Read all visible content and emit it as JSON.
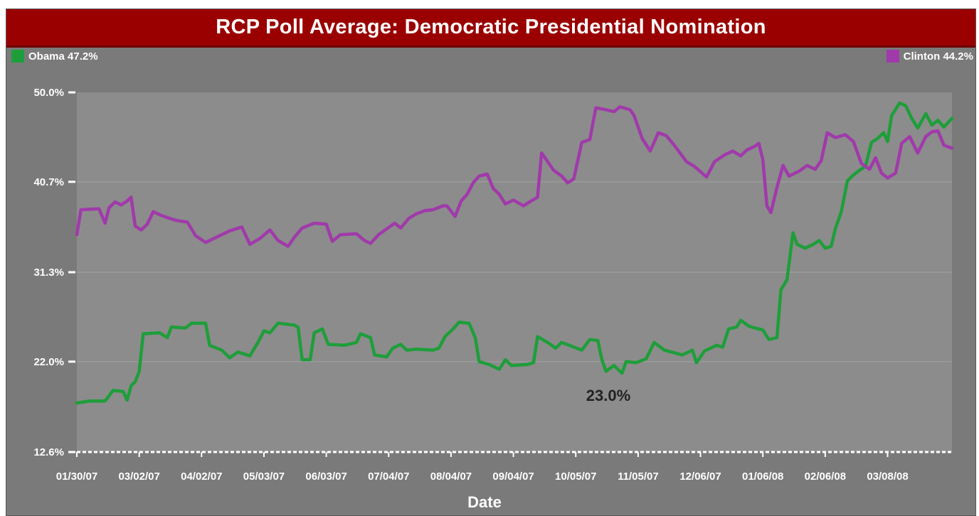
{
  "chart_data": {
    "type": "line",
    "title": "RCP Poll Average: Democratic Presidential Nomination",
    "xlabel": "Date",
    "ylabel": "",
    "ylim": [
      12.6,
      50.0
    ],
    "yticks": [
      "50.0%",
      "40.7%",
      "31.3%",
      "22.0%",
      "12.6%"
    ],
    "ytick_values": [
      50.0,
      40.7,
      31.3,
      22.0,
      12.6
    ],
    "xtick_labels": [
      "01/30/07",
      "03/02/07",
      "04/02/07",
      "05/03/07",
      "06/03/07",
      "07/04/07",
      "08/04/07",
      "09/04/07",
      "10/05/07",
      "11/05/07",
      "12/06/07",
      "01/06/08",
      "02/06/08",
      "03/08/08"
    ],
    "grid": true,
    "legend": [
      {
        "name": "Obama",
        "label": "Obama 47.2%",
        "placement": "top-left"
      },
      {
        "name": "Clinton",
        "label": "Clinton 44.2%",
        "placement": "top-right"
      }
    ],
    "annotations": [
      {
        "text": "23.0%"
      }
    ],
    "series": [
      {
        "name": "Obama",
        "color": "#1e9e3a",
        "points": [
          [
            "01/30/07",
            17.7
          ],
          [
            "02/05/07",
            17.9
          ],
          [
            "02/13/07",
            17.9
          ],
          [
            "02/17/07",
            19.0
          ],
          [
            "02/22/07",
            18.9
          ],
          [
            "02/24/07",
            18.0
          ],
          [
            "02/26/07",
            19.5
          ],
          [
            "02/28/07",
            19.9
          ],
          [
            "03/02/07",
            21.0
          ],
          [
            "03/04/07",
            24.9
          ],
          [
            "03/12/07",
            25.0
          ],
          [
            "03/16/07",
            24.5
          ],
          [
            "03/18/07",
            25.6
          ],
          [
            "03/25/07",
            25.5
          ],
          [
            "03/28/07",
            26.0
          ],
          [
            "04/04/07",
            26.0
          ],
          [
            "04/06/07",
            23.7
          ],
          [
            "04/12/07",
            23.2
          ],
          [
            "04/16/07",
            22.4
          ],
          [
            "04/20/07",
            23.0
          ],
          [
            "04/26/07",
            22.6
          ],
          [
            "04/30/07",
            24.0
          ],
          [
            "05/03/07",
            25.2
          ],
          [
            "05/06/07",
            25.0
          ],
          [
            "05/10/07",
            26.0
          ],
          [
            "05/18/07",
            25.8
          ],
          [
            "05/20/07",
            25.6
          ],
          [
            "05/22/07",
            22.2
          ],
          [
            "05/26/07",
            22.2
          ],
          [
            "05/28/07",
            25.0
          ],
          [
            "06/01/07",
            25.4
          ],
          [
            "06/04/07",
            23.8
          ],
          [
            "06/12/07",
            23.7
          ],
          [
            "06/18/07",
            24.0
          ],
          [
            "06/20/07",
            24.9
          ],
          [
            "06/25/07",
            24.5
          ],
          [
            "06/27/07",
            22.7
          ],
          [
            "07/03/07",
            22.5
          ],
          [
            "07/06/07",
            23.4
          ],
          [
            "07/10/07",
            23.8
          ],
          [
            "07/13/07",
            23.2
          ],
          [
            "07/18/07",
            23.3
          ],
          [
            "07/26/07",
            23.2
          ],
          [
            "07/29/07",
            23.4
          ],
          [
            "08/01/07",
            24.6
          ],
          [
            "08/05/07",
            25.4
          ],
          [
            "08/08/07",
            26.1
          ],
          [
            "08/13/07",
            26.0
          ],
          [
            "08/16/07",
            24.5
          ],
          [
            "08/18/07",
            22.0
          ],
          [
            "08/23/07",
            21.7
          ],
          [
            "08/28/07",
            21.2
          ],
          [
            "08/31/07",
            22.2
          ],
          [
            "09/03/07",
            21.6
          ],
          [
            "09/11/07",
            21.7
          ],
          [
            "09/14/07",
            21.9
          ],
          [
            "09/16/07",
            24.6
          ],
          [
            "09/21/07",
            24.0
          ],
          [
            "09/25/07",
            23.4
          ],
          [
            "09/28/07",
            24.0
          ],
          [
            "10/03/07",
            23.6
          ],
          [
            "10/08/07",
            23.2
          ],
          [
            "10/12/07",
            24.3
          ],
          [
            "10/16/07",
            24.2
          ],
          [
            "10/18/07",
            22.2
          ],
          [
            "10/20/07",
            21.0
          ],
          [
            "10/24/07",
            21.6
          ],
          [
            "10/28/07",
            20.8
          ],
          [
            "10/30/07",
            22.0
          ],
          [
            "11/04/07",
            21.9
          ],
          [
            "11/09/07",
            22.3
          ],
          [
            "11/13/07",
            24.0
          ],
          [
            "11/18/07",
            23.2
          ],
          [
            "11/27/07",
            22.7
          ],
          [
            "12/02/07",
            23.2
          ],
          [
            "12/04/07",
            21.9
          ],
          [
            "12/08/07",
            23.1
          ],
          [
            "12/14/07",
            23.7
          ],
          [
            "12/17/07",
            23.5
          ],
          [
            "12/20/07",
            25.4
          ],
          [
            "12/24/07",
            25.6
          ],
          [
            "12/26/07",
            26.3
          ],
          [
            "12/30/07",
            25.7
          ],
          [
            "01/02/08",
            25.5
          ],
          [
            "01/06/08",
            25.3
          ],
          [
            "01/09/08",
            24.3
          ],
          [
            "01/13/08",
            24.5
          ],
          [
            "01/15/08",
            29.5
          ],
          [
            "01/18/08",
            30.5
          ],
          [
            "01/21/08",
            35.4
          ],
          [
            "01/23/08",
            34.2
          ],
          [
            "01/27/08",
            33.8
          ],
          [
            "01/31/08",
            34.2
          ],
          [
            "02/03/08",
            34.6
          ],
          [
            "02/06/08",
            33.8
          ],
          [
            "02/09/08",
            34.0
          ],
          [
            "02/11/08",
            35.8
          ],
          [
            "02/14/08",
            37.6
          ],
          [
            "02/17/08",
            40.8
          ],
          [
            "02/20/08",
            41.4
          ],
          [
            "02/23/08",
            41.9
          ],
          [
            "02/26/08",
            42.3
          ],
          [
            "02/29/08",
            44.8
          ],
          [
            "03/03/08",
            45.2
          ],
          [
            "03/06/08",
            45.8
          ],
          [
            "03/08/08",
            44.9
          ],
          [
            "03/10/08",
            47.6
          ],
          [
            "03/14/08",
            48.9
          ],
          [
            "03/17/08",
            48.6
          ],
          [
            "03/20/08",
            47.3
          ],
          [
            "03/23/08",
            46.3
          ],
          [
            "03/27/08",
            47.8
          ],
          [
            "03/30/08",
            46.6
          ],
          [
            "04/02/08",
            47.1
          ],
          [
            "04/05/08",
            46.4
          ],
          [
            "04/09/08",
            47.3
          ]
        ]
      },
      {
        "name": "Clinton",
        "color": "#a03aaa",
        "points": [
          [
            "01/30/07",
            35.2
          ],
          [
            "02/01/07",
            37.8
          ],
          [
            "02/10/07",
            37.9
          ],
          [
            "02/13/07",
            36.4
          ],
          [
            "02/15/07",
            38.0
          ],
          [
            "02/18/07",
            38.6
          ],
          [
            "02/21/07",
            38.3
          ],
          [
            "02/24/07",
            38.7
          ],
          [
            "02/26/07",
            39.1
          ],
          [
            "02/28/07",
            36.1
          ],
          [
            "03/03/07",
            35.7
          ],
          [
            "03/06/07",
            36.3
          ],
          [
            "03/09/07",
            37.6
          ],
          [
            "03/13/07",
            37.2
          ],
          [
            "03/20/07",
            36.7
          ],
          [
            "03/26/07",
            36.5
          ],
          [
            "03/30/07",
            35.1
          ],
          [
            "04/04/07",
            34.4
          ],
          [
            "04/10/07",
            35.0
          ],
          [
            "04/16/07",
            35.6
          ],
          [
            "04/22/07",
            36.0
          ],
          [
            "04/26/07",
            34.2
          ],
          [
            "05/01/07",
            34.8
          ],
          [
            "05/06/07",
            35.7
          ],
          [
            "05/10/07",
            34.6
          ],
          [
            "05/15/07",
            34.0
          ],
          [
            "05/18/07",
            34.9
          ],
          [
            "05/22/07",
            35.9
          ],
          [
            "05/28/07",
            36.4
          ],
          [
            "06/03/07",
            36.3
          ],
          [
            "06/06/07",
            34.5
          ],
          [
            "06/10/07",
            35.2
          ],
          [
            "06/18/07",
            35.3
          ],
          [
            "06/22/07",
            34.6
          ],
          [
            "06/25/07",
            34.3
          ],
          [
            "06/29/07",
            35.2
          ],
          [
            "07/03/07",
            35.8
          ],
          [
            "07/07/07",
            36.4
          ],
          [
            "07/10/07",
            35.9
          ],
          [
            "07/14/07",
            36.9
          ],
          [
            "07/18/07",
            37.4
          ],
          [
            "07/22/07",
            37.7
          ],
          [
            "07/26/07",
            37.8
          ],
          [
            "07/31/07",
            38.2
          ],
          [
            "08/02/07",
            38.2
          ],
          [
            "08/06/07",
            37.1
          ],
          [
            "08/09/07",
            38.7
          ],
          [
            "08/12/07",
            39.4
          ],
          [
            "08/15/07",
            40.6
          ],
          [
            "08/18/07",
            41.3
          ],
          [
            "08/22/07",
            41.5
          ],
          [
            "08/25/07",
            40.0
          ],
          [
            "08/28/07",
            39.4
          ],
          [
            "08/31/07",
            38.4
          ],
          [
            "09/04/07",
            38.8
          ],
          [
            "09/09/07",
            38.2
          ],
          [
            "09/12/07",
            38.6
          ],
          [
            "09/16/07",
            39.1
          ],
          [
            "09/18/07",
            43.7
          ],
          [
            "09/21/07",
            42.8
          ],
          [
            "09/24/07",
            41.9
          ],
          [
            "09/28/07",
            41.3
          ],
          [
            "10/01/07",
            40.6
          ],
          [
            "10/04/07",
            41.0
          ],
          [
            "10/08/07",
            44.8
          ],
          [
            "10/12/07",
            45.1
          ],
          [
            "10/15/07",
            48.4
          ],
          [
            "10/20/07",
            48.2
          ],
          [
            "10/24/07",
            48.0
          ],
          [
            "10/27/07",
            48.5
          ],
          [
            "11/01/07",
            48.2
          ],
          [
            "11/03/07",
            47.6
          ],
          [
            "11/07/07",
            45.2
          ],
          [
            "11/11/07",
            43.9
          ],
          [
            "11/15/07",
            45.8
          ],
          [
            "11/19/07",
            45.5
          ],
          [
            "11/23/07",
            44.5
          ],
          [
            "11/29/07",
            42.8
          ],
          [
            "12/03/07",
            42.3
          ],
          [
            "12/09/07",
            41.2
          ],
          [
            "12/13/07",
            42.8
          ],
          [
            "12/18/07",
            43.5
          ],
          [
            "12/22/07",
            43.9
          ],
          [
            "12/26/07",
            43.4
          ],
          [
            "12/29/07",
            44.0
          ],
          [
            "01/02/08",
            44.4
          ],
          [
            "01/04/08",
            44.7
          ],
          [
            "01/06/08",
            43.0
          ],
          [
            "01/08/08",
            38.2
          ],
          [
            "01/10/08",
            37.5
          ],
          [
            "01/13/08",
            40.1
          ],
          [
            "01/16/08",
            42.4
          ],
          [
            "01/19/08",
            41.3
          ],
          [
            "01/24/08",
            41.8
          ],
          [
            "01/28/08",
            42.4
          ],
          [
            "02/01/08",
            42.0
          ],
          [
            "02/04/08",
            42.9
          ],
          [
            "02/07/08",
            45.8
          ],
          [
            "02/11/08",
            45.3
          ],
          [
            "02/16/08",
            45.6
          ],
          [
            "02/20/08",
            44.9
          ],
          [
            "02/24/08",
            42.6
          ],
          [
            "02/28/08",
            42.0
          ],
          [
            "03/02/08",
            43.2
          ],
          [
            "03/05/08",
            41.6
          ],
          [
            "03/08/08",
            41.1
          ],
          [
            "03/12/08",
            41.6
          ],
          [
            "03/15/08",
            44.7
          ],
          [
            "03/19/08",
            45.4
          ],
          [
            "03/23/08",
            43.7
          ],
          [
            "03/27/08",
            45.4
          ],
          [
            "03/30/08",
            45.9
          ],
          [
            "04/02/08",
            46.0
          ],
          [
            "04/05/08",
            44.5
          ],
          [
            "04/09/08",
            44.2
          ]
        ]
      }
    ]
  }
}
